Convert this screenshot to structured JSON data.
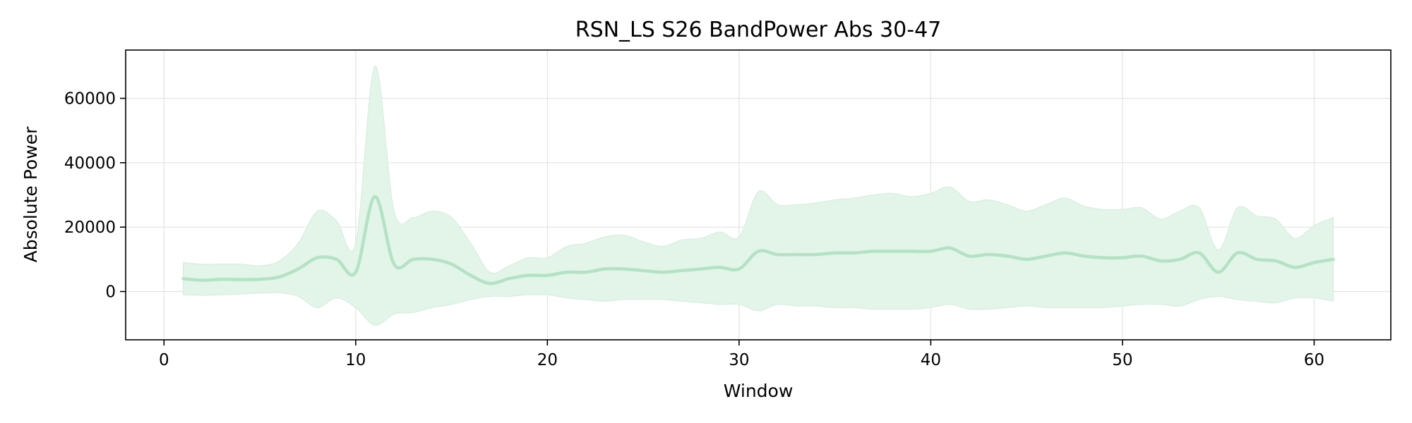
{
  "chart_data": {
    "type": "line",
    "title": "RSN_LS S26 BandPower Abs 30-47",
    "xlabel": "Window",
    "ylabel": "Absolute Power",
    "xlim": [
      -2,
      64
    ],
    "ylim": [
      -15000,
      75000
    ],
    "xticks": [
      0,
      10,
      20,
      30,
      40,
      50,
      60
    ],
    "yticks": [
      0,
      20000,
      40000,
      60000
    ],
    "grid": true,
    "legend": "none",
    "colors": {
      "line": "#b3e2c4",
      "band": "#e3f4e9",
      "band_edge": "#d4ecdc",
      "grid": "#e3e3e3",
      "frame": "#000000"
    },
    "series": [
      {
        "x": [
          1,
          2,
          3,
          4,
          5,
          6,
          7,
          8,
          9,
          10,
          11,
          12,
          13,
          14,
          15,
          16,
          17,
          18,
          19,
          20,
          21,
          22,
          23,
          24,
          25,
          26,
          27,
          28,
          29,
          30,
          31,
          32,
          33,
          34,
          35,
          36,
          37,
          38,
          39,
          40,
          41,
          42,
          43,
          44,
          45,
          46,
          47,
          48,
          49,
          50,
          51,
          52,
          53,
          54,
          55,
          56,
          57,
          58,
          59,
          60,
          61
        ],
        "mean": [
          4000,
          3500,
          3800,
          3700,
          3800,
          4500,
          7000,
          10500,
          10000,
          6000,
          29500,
          8500,
          10000,
          10000,
          8500,
          5000,
          2500,
          4000,
          5000,
          5000,
          6000,
          6000,
          7000,
          7000,
          6500,
          6000,
          6500,
          7000,
          7500,
          7000,
          12500,
          11500,
          11500,
          11500,
          12000,
          12000,
          12500,
          12500,
          12500,
          12500,
          13500,
          11000,
          11500,
          11000,
          10000,
          11000,
          12000,
          11000,
          10500,
          10500,
          11000,
          9500,
          10000,
          12000,
          6000,
          12000,
          10000,
          9500,
          7500,
          9000,
          10000
        ],
        "upper": [
          9000,
          8500,
          8500,
          8500,
          8000,
          9500,
          15000,
          25000,
          22000,
          15000,
          70000,
          25000,
          23000,
          25000,
          23000,
          15000,
          6000,
          8000,
          10500,
          10500,
          14000,
          15000,
          17000,
          17500,
          15500,
          14000,
          16000,
          16500,
          18500,
          17000,
          31000,
          27000,
          27000,
          27500,
          28500,
          29000,
          30000,
          30500,
          29500,
          30500,
          32500,
          28000,
          28500,
          27000,
          25000,
          27000,
          29000,
          26500,
          25500,
          25500,
          26000,
          22500,
          25000,
          26000,
          13000,
          26000,
          23500,
          22500,
          16500,
          20500,
          23000
        ],
        "lower": [
          -1000,
          -1200,
          -1000,
          -800,
          -500,
          -400,
          -1500,
          -5000,
          -2000,
          -5000,
          -10500,
          -7000,
          -6500,
          -5000,
          -4000,
          -2500,
          -1500,
          -1500,
          -1000,
          -1000,
          -2000,
          -2500,
          -3000,
          -2500,
          -2500,
          -2500,
          -3000,
          -3500,
          -4000,
          -4000,
          -6000,
          -4000,
          -4500,
          -4500,
          -5000,
          -5000,
          -5500,
          -5500,
          -5500,
          -5000,
          -4000,
          -5500,
          -5500,
          -5000,
          -4500,
          -5000,
          -5000,
          -5000,
          -5000,
          -4500,
          -4000,
          -4000,
          -4500,
          -2500,
          -1500,
          -2500,
          -3000,
          -3500,
          -2000,
          -2000,
          -3000
        ]
      }
    ]
  }
}
